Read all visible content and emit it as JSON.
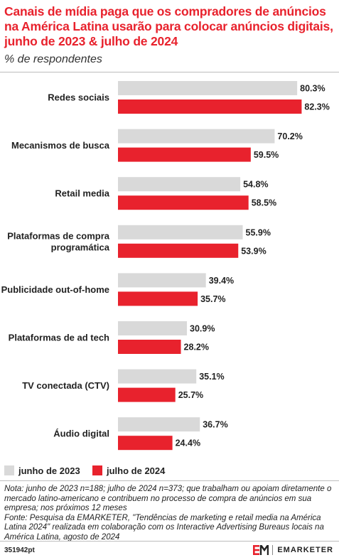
{
  "header": {
    "title": "Canais de mídia paga que os compradores de anúncios na América Latina usarão para colocar anúncios digitais, junho de 2023 & julho de 2024",
    "subtitle": "% de respondentes"
  },
  "colors": {
    "series_2023": "#d9d9d9",
    "series_2024": "#e8222d",
    "title": "#e8222d"
  },
  "chart_data": {
    "type": "bar",
    "orientation": "horizontal",
    "categories": [
      [
        "Redes sociais"
      ],
      [
        "Mecanismos de busca"
      ],
      [
        "Retail media"
      ],
      [
        "Plataformas de compra",
        "programática"
      ],
      [
        "Publicidade out-of-home"
      ],
      [
        "Plataformas de ad tech"
      ],
      [
        "TV conectada (CTV)"
      ],
      [
        "Áudio digital"
      ]
    ],
    "series": [
      {
        "name": "junho de 2023",
        "values": [
          80.3,
          70.2,
          54.8,
          55.9,
          39.4,
          30.9,
          35.1,
          36.7
        ]
      },
      {
        "name": "julho de 2024",
        "values": [
          82.3,
          59.5,
          58.5,
          53.9,
          35.7,
          28.2,
          25.7,
          24.4
        ]
      }
    ],
    "value_suffix": "%",
    "xlim": [
      0,
      100
    ],
    "grid": false,
    "legend_position": "bottom-left"
  },
  "legend": {
    "items": [
      {
        "label": "junho de 2023",
        "color": "#d9d9d9"
      },
      {
        "label": "julho de 2024",
        "color": "#e8222d"
      }
    ]
  },
  "note": "Nota: junho de 2023 n=188; julho de 2024 n=373; que trabalham ou apoiam diretamente o mercado latino-americano e contribuem no processo de compra de anúncios em sua empresa; nos próximos 12 meses\nFonte: Pesquisa da EMARKETER, \"Tendências de marketing e retail media na América Latina 2024\" realizada em colaboração com os Interactive Advertising Bureaus locais na América Latina, agosto de 2024",
  "footer": {
    "code": "351942pt",
    "brand": "EMARKETER",
    "logo_icon": "em-logo-icon"
  }
}
